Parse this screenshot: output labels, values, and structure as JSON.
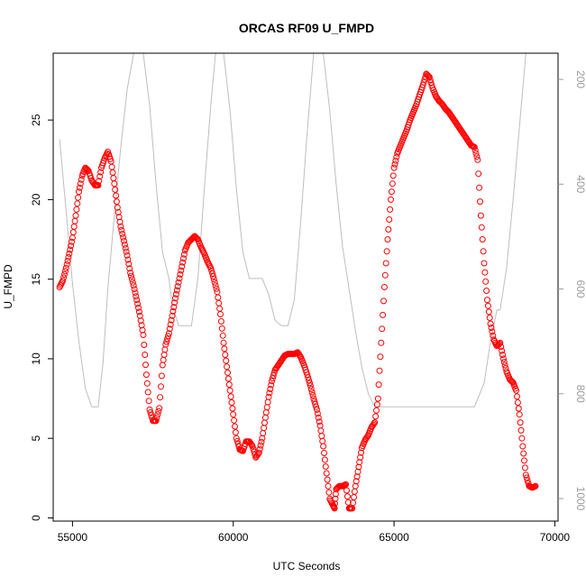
{
  "chart_data": {
    "type": "scatter",
    "title": "ORCAS RF09 U_FMPD",
    "xlabel": "UTC Seconds",
    "ylabel": "U_FMPD",
    "xlim": [
      54400,
      70100
    ],
    "ylim": [
      -0.2,
      29.2
    ],
    "x_ticks": [
      "55000",
      "60000",
      "65000",
      "70000"
    ],
    "y_ticks": [
      "0",
      "5",
      "10",
      "15",
      "20",
      "25"
    ],
    "y2_ticks": [
      "200",
      "400",
      "600",
      "800",
      "1000"
    ],
    "y2lim": [
      1043,
      150
    ],
    "grid": false,
    "series": [
      {
        "color": "#ff0000",
        "marker": "open-circle",
        "points": [
          [
            54600,
            14.5
          ],
          [
            54700,
            14.9
          ],
          [
            54800,
            15.7
          ],
          [
            54900,
            16.6
          ],
          [
            55000,
            17.6
          ],
          [
            55100,
            19.0
          ],
          [
            55200,
            20.5
          ],
          [
            55300,
            21.5
          ],
          [
            55400,
            22.0
          ],
          [
            55500,
            21.8
          ],
          [
            55600,
            21.2
          ],
          [
            55700,
            20.9
          ],
          [
            55800,
            20.9
          ],
          [
            55900,
            22.0
          ],
          [
            56000,
            22.6
          ],
          [
            56100,
            23.0
          ],
          [
            56200,
            22.4
          ],
          [
            56300,
            21.0
          ],
          [
            56400,
            19.5
          ],
          [
            56500,
            18.3
          ],
          [
            56600,
            17.4
          ],
          [
            56700,
            16.5
          ],
          [
            56800,
            15.4
          ],
          [
            56900,
            14.6
          ],
          [
            57000,
            13.7
          ],
          [
            57100,
            12.7
          ],
          [
            57200,
            11.5
          ],
          [
            57300,
            9.0
          ],
          [
            57400,
            6.8
          ],
          [
            57500,
            6.1
          ],
          [
            57600,
            6.1
          ],
          [
            57700,
            6.9
          ],
          [
            57800,
            9.6
          ],
          [
            57900,
            10.9
          ],
          [
            58000,
            11.6
          ],
          [
            58100,
            12.7
          ],
          [
            58200,
            13.8
          ],
          [
            58300,
            14.8
          ],
          [
            58400,
            15.8
          ],
          [
            58500,
            16.8
          ],
          [
            58600,
            17.3
          ],
          [
            58700,
            17.5
          ],
          [
            58800,
            17.7
          ],
          [
            58900,
            17.5
          ],
          [
            59000,
            17.0
          ],
          [
            59100,
            16.6
          ],
          [
            59200,
            16.1
          ],
          [
            59300,
            15.7
          ],
          [
            59400,
            15.0
          ],
          [
            59500,
            14.2
          ],
          [
            59600,
            12.8
          ],
          [
            59700,
            11.0
          ],
          [
            59800,
            9.5
          ],
          [
            59900,
            8.0
          ],
          [
            60000,
            6.5
          ],
          [
            60100,
            5.0
          ],
          [
            60200,
            4.3
          ],
          [
            60300,
            4.2
          ],
          [
            60400,
            4.8
          ],
          [
            60500,
            4.8
          ],
          [
            60600,
            4.5
          ],
          [
            60700,
            3.8
          ],
          [
            60800,
            4.1
          ],
          [
            60900,
            5.0
          ],
          [
            61000,
            6.3
          ],
          [
            61100,
            7.6
          ],
          [
            61200,
            8.6
          ],
          [
            61300,
            9.3
          ],
          [
            61400,
            9.6
          ],
          [
            61500,
            9.9
          ],
          [
            61600,
            10.2
          ],
          [
            61700,
            10.3
          ],
          [
            61800,
            10.3
          ],
          [
            61900,
            10.3
          ],
          [
            62000,
            10.4
          ],
          [
            62100,
            10.1
          ],
          [
            62200,
            9.6
          ],
          [
            62300,
            9.0
          ],
          [
            62400,
            8.3
          ],
          [
            62500,
            7.5
          ],
          [
            62600,
            6.8
          ],
          [
            62700,
            5.8
          ],
          [
            62800,
            4.5
          ],
          [
            62900,
            2.8
          ],
          [
            63000,
            1.2
          ],
          [
            63100,
            0.8
          ],
          [
            63150,
            0.6
          ],
          [
            63200,
            1.8
          ],
          [
            63300,
            2.0
          ],
          [
            63400,
            2.0
          ],
          [
            63500,
            2.1
          ],
          [
            63600,
            0.6
          ],
          [
            63700,
            0.6
          ],
          [
            63800,
            2.0
          ],
          [
            63900,
            3.2
          ],
          [
            64000,
            4.4
          ],
          [
            64100,
            4.9
          ],
          [
            64200,
            5.2
          ],
          [
            64300,
            5.7
          ],
          [
            64400,
            6.0
          ],
          [
            64500,
            7.5
          ],
          [
            64600,
            11.0
          ],
          [
            64700,
            14.5
          ],
          [
            64800,
            17.5
          ],
          [
            64900,
            20.0
          ],
          [
            65000,
            22.0
          ],
          [
            65100,
            22.9
          ],
          [
            65200,
            23.4
          ],
          [
            65300,
            23.9
          ],
          [
            65400,
            24.4
          ],
          [
            65500,
            25.0
          ],
          [
            65600,
            25.5
          ],
          [
            65700,
            26.0
          ],
          [
            65800,
            26.6
          ],
          [
            65900,
            27.2
          ],
          [
            66000,
            27.9
          ],
          [
            66100,
            27.7
          ],
          [
            66200,
            27.0
          ],
          [
            66300,
            26.5
          ],
          [
            66400,
            26.2
          ],
          [
            66500,
            26.0
          ],
          [
            66600,
            25.7
          ],
          [
            66700,
            25.5
          ],
          [
            66800,
            25.2
          ],
          [
            66900,
            24.9
          ],
          [
            67000,
            24.6
          ],
          [
            67100,
            24.3
          ],
          [
            67200,
            24.0
          ],
          [
            67300,
            23.7
          ],
          [
            67400,
            23.4
          ],
          [
            67500,
            23.3
          ],
          [
            67600,
            22.5
          ],
          [
            67700,
            19.0
          ],
          [
            67800,
            16.0
          ],
          [
            67900,
            13.7
          ],
          [
            68000,
            12.2
          ],
          [
            68100,
            11.2
          ],
          [
            68200,
            10.8
          ],
          [
            68300,
            11.0
          ],
          [
            68400,
            10.0
          ],
          [
            68500,
            9.2
          ],
          [
            68600,
            8.7
          ],
          [
            68700,
            8.5
          ],
          [
            68800,
            8.0
          ],
          [
            68900,
            6.5
          ],
          [
            69000,
            4.5
          ],
          [
            69100,
            2.7
          ],
          [
            69200,
            2.0
          ],
          [
            69300,
            1.9
          ],
          [
            69400,
            2.0
          ]
        ]
      },
      {
        "color": "#bebebe",
        "marker": "line",
        "axis": "right",
        "points": [
          [
            54600,
            314
          ],
          [
            54800,
            450
          ],
          [
            55000,
            590
          ],
          [
            55200,
            700
          ],
          [
            55400,
            790
          ],
          [
            55600,
            825
          ],
          [
            55800,
            825
          ],
          [
            55950,
            740
          ],
          [
            56100,
            600
          ],
          [
            56300,
            460
          ],
          [
            56500,
            330
          ],
          [
            56700,
            220
          ],
          [
            56900,
            150
          ],
          [
            57200,
            150
          ],
          [
            57400,
            250
          ],
          [
            57600,
            400
          ],
          [
            57800,
            530
          ],
          [
            58000,
            580
          ],
          [
            58100,
            630
          ],
          [
            58300,
            670
          ],
          [
            58500,
            670
          ],
          [
            58700,
            670
          ],
          [
            58900,
            580
          ],
          [
            59100,
            410
          ],
          [
            59300,
            250
          ],
          [
            59450,
            150
          ],
          [
            59700,
            150
          ],
          [
            59900,
            260
          ],
          [
            60100,
            410
          ],
          [
            60300,
            530
          ],
          [
            60500,
            580
          ],
          [
            60700,
            580
          ],
          [
            60900,
            580
          ],
          [
            61100,
            610
          ],
          [
            61300,
            660
          ],
          [
            61500,
            670
          ],
          [
            61700,
            670
          ],
          [
            61900,
            620
          ],
          [
            62100,
            470
          ],
          [
            62300,
            300
          ],
          [
            62500,
            150
          ],
          [
            62800,
            150
          ],
          [
            63000,
            260
          ],
          [
            63200,
            400
          ],
          [
            63400,
            520
          ],
          [
            63600,
            600
          ],
          [
            63800,
            680
          ],
          [
            64000,
            750
          ],
          [
            64200,
            800
          ],
          [
            64400,
            825
          ],
          [
            64600,
            825
          ],
          [
            65000,
            825
          ],
          [
            65500,
            825
          ],
          [
            66000,
            825
          ],
          [
            66500,
            825
          ],
          [
            67000,
            825
          ],
          [
            67500,
            825
          ],
          [
            67800,
            780
          ],
          [
            68000,
            700
          ],
          [
            68200,
            640
          ],
          [
            68300,
            640
          ],
          [
            68500,
            560
          ],
          [
            68700,
            430
          ],
          [
            68900,
            290
          ],
          [
            69100,
            150
          ]
        ]
      }
    ]
  }
}
